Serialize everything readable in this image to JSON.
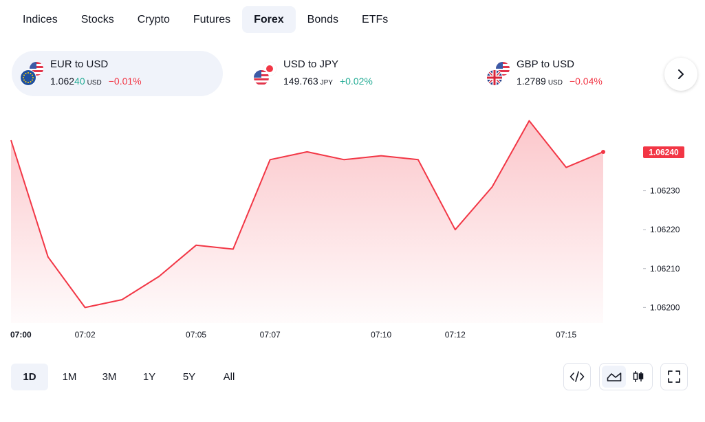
{
  "tabs": [
    {
      "label": "Indices"
    },
    {
      "label": "Stocks"
    },
    {
      "label": "Crypto"
    },
    {
      "label": "Futures"
    },
    {
      "label": "Forex",
      "active": true
    },
    {
      "label": "Bonds"
    },
    {
      "label": "ETFs"
    }
  ],
  "symbols": [
    {
      "name": "EUR to USD",
      "price_main": "1.062",
      "price_tail": "40",
      "unit": "USD",
      "change": "−0.01%",
      "direction": "down",
      "flags": [
        "us-flag-icon",
        "eu-flag-icon"
      ]
    },
    {
      "name": "USD to JPY",
      "price_main": "149.763",
      "price_tail": "",
      "unit": "JPY",
      "change": "+0.02%",
      "direction": "up",
      "flags": [
        "jp-flag-icon",
        "us-flag-icon"
      ]
    },
    {
      "name": "GBP to USD",
      "price_main": "1.2789",
      "price_tail": "",
      "unit": "USD",
      "change": "−0.04%",
      "direction": "down",
      "flags": [
        "us-flag-icon",
        "uk-flag-icon"
      ]
    }
  ],
  "ranges": [
    {
      "label": "1D",
      "active": true
    },
    {
      "label": "1M"
    },
    {
      "label": "3M"
    },
    {
      "label": "1Y"
    },
    {
      "label": "5Y"
    },
    {
      "label": "All"
    }
  ],
  "colors": {
    "line": "#f23645",
    "up": "#22ab94",
    "down": "#f23645"
  },
  "tools": {
    "embed": "code-icon",
    "area": "area-chart-icon",
    "candles": "candlestick-icon",
    "fullscreen": "fullscreen-icon"
  },
  "chart_data": {
    "type": "area",
    "x": [
      "07:00",
      "07:01",
      "07:02",
      "07:03",
      "07:04",
      "07:05",
      "07:06",
      "07:07",
      "07:08",
      "07:09",
      "07:10",
      "07:11",
      "07:12",
      "07:13",
      "07:14",
      "07:15",
      "07:16"
    ],
    "values": [
      1.06243,
      1.06213,
      1.062,
      1.06202,
      1.06208,
      1.06216,
      1.06215,
      1.06238,
      1.0624,
      1.06238,
      1.06239,
      1.06238,
      1.0622,
      1.06231,
      1.06248,
      1.06236,
      1.0624
    ],
    "ylim": [
      1.06196,
      1.06249
    ],
    "yticks": [
      "1.06200",
      "1.06210",
      "1.06220",
      "1.06230"
    ],
    "xticks": [
      "07:00",
      "07:02",
      "07:05",
      "07:07",
      "07:10",
      "07:12",
      "07:15"
    ],
    "last_value_label": "1.06240",
    "grid": false
  }
}
